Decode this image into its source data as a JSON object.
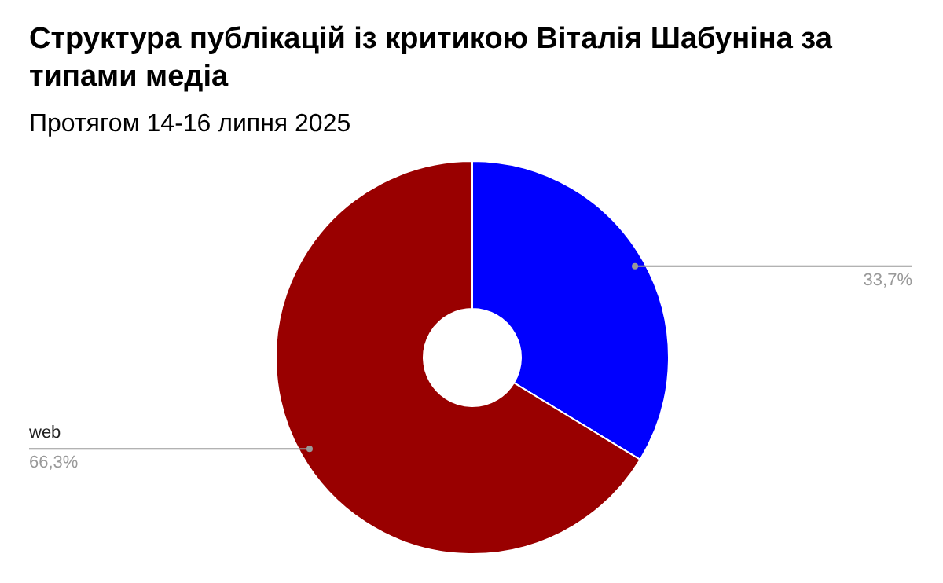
{
  "chart_data": {
    "type": "donut",
    "title": "Структура публікацій із критикою Віталія Шабуніна за типами медіа",
    "subtitle": "Протягом 14-16 липня 2025",
    "categories": [
      null,
      "web"
    ],
    "values": [
      33.7,
      66.3
    ],
    "colors": [
      "#0000ff",
      "#990000"
    ],
    "value_labels": [
      "33,7%",
      "66,3%"
    ]
  }
}
